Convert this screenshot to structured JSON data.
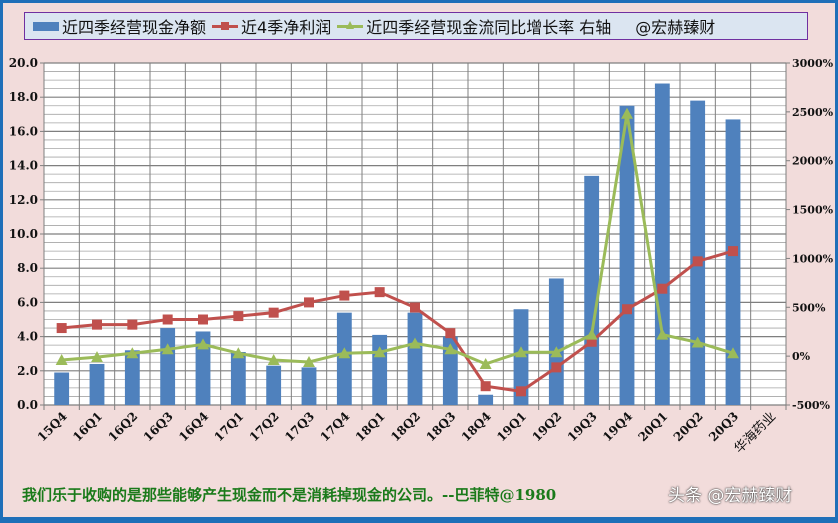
{
  "legend": {
    "series1": "近四季经营现金净额",
    "series2": "近4季净利润",
    "series3": "近四季经营现金流同比增长率 右轴",
    "credit": "@宏赫臻财"
  },
  "footer": {
    "quote": "我们乐于收购的是那些能够产生现金而不是消耗掉现金的公司。--巴菲特@1980",
    "watermark": "头条 @宏赫臻财"
  },
  "colors": {
    "bar": "#4f81bd",
    "net_profit": "#c0504d",
    "growth": "#9bbb59",
    "background": "#f2dcdb",
    "border": "#1f6fb8",
    "quote": "#1a7a1a"
  },
  "chart_data": {
    "type": "bar",
    "title": "",
    "company_label": "华海药业",
    "categories": [
      "15Q4",
      "16Q1",
      "16Q2",
      "16Q3",
      "16Q4",
      "17Q1",
      "17Q2",
      "17Q3",
      "17Q4",
      "18Q1",
      "18Q2",
      "18Q3",
      "18Q4",
      "19Q1",
      "19Q2",
      "19Q3",
      "19Q4",
      "20Q1",
      "20Q2",
      "20Q3"
    ],
    "series": [
      {
        "name": "近四季经营现金净额",
        "type": "bar",
        "axis": "left",
        "values": [
          1.9,
          2.4,
          3.2,
          4.5,
          4.3,
          3.1,
          2.3,
          2.2,
          5.4,
          4.1,
          5.4,
          4.0,
          0.6,
          5.6,
          7.4,
          13.4,
          17.5,
          18.8,
          17.8,
          16.7
        ]
      },
      {
        "name": "近4季净利润",
        "type": "line",
        "axis": "left",
        "marker": "square",
        "values": [
          4.5,
          4.7,
          4.7,
          5.0,
          5.0,
          5.2,
          5.4,
          6.0,
          6.4,
          6.6,
          5.7,
          4.2,
          1.1,
          0.8,
          2.2,
          3.7,
          5.6,
          6.8,
          8.4,
          9.0
        ]
      },
      {
        "name": "近四季经营现金流同比增长率 右轴",
        "type": "line",
        "axis": "right",
        "marker": "triangle",
        "unit": "%",
        "values": [
          -40,
          -10,
          30,
          70,
          120,
          30,
          -40,
          -60,
          30,
          40,
          130,
          70,
          -80,
          40,
          40,
          220,
          2480,
          220,
          140,
          30
        ]
      }
    ],
    "y_left": {
      "ticks": [
        "0.0",
        "2.0",
        "4.0",
        "6.0",
        "8.0",
        "10.0",
        "12.0",
        "14.0",
        "16.0",
        "18.0",
        "20.0"
      ],
      "range": [
        0,
        20
      ]
    },
    "y_right": {
      "ticks": [
        "-500%",
        "0%",
        "500%",
        "1000%",
        "1500%",
        "2000%",
        "2500%",
        "3000%"
      ],
      "range": [
        -500,
        3000
      ]
    },
    "grid": true,
    "legend_position": "top"
  }
}
